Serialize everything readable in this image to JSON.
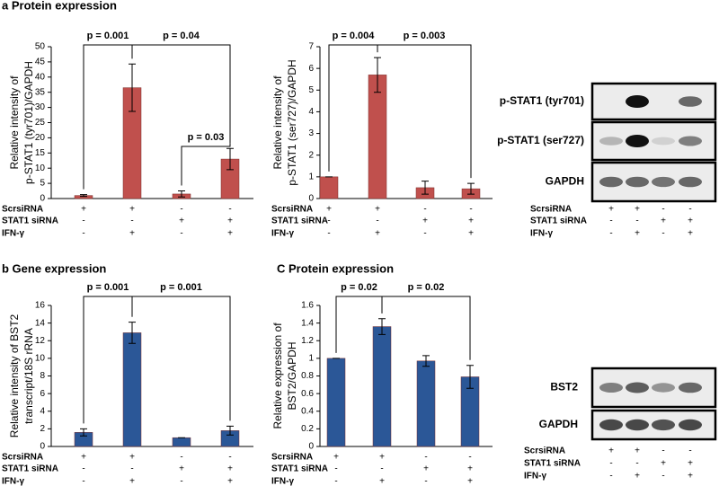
{
  "chart_data": [
    {
      "type": "bar",
      "title": "a Protein expression",
      "ylabel": [
        "Relative intensity of",
        "p-STAT1 (tyr701)/GAPDH"
      ],
      "color": "#c0504d",
      "values": [
        1,
        36.5,
        1.5,
        13
      ],
      "errors": [
        0.3,
        7.8,
        1,
        3.5
      ],
      "ylim": [
        0,
        50
      ],
      "yticks": [
        0,
        5,
        10,
        15,
        20,
        25,
        30,
        35,
        40,
        45,
        50
      ],
      "annotations": [
        "p = 0.001",
        "p = 0.04",
        "p = 0.03"
      ],
      "conditions": [
        {
          "name": "ScrsiRNA",
          "signs": [
            "+",
            "+",
            "-",
            "-"
          ]
        },
        {
          "name": "STAT1 siRNA",
          "signs": [
            "-",
            "-",
            "+",
            "+"
          ]
        },
        {
          "name": "IFN-γ",
          "signs": [
            "-",
            "+",
            "-",
            "+"
          ]
        }
      ]
    },
    {
      "type": "bar",
      "ylabel": [
        "Relative intensity of",
        "p-STAT1 (ser727)/GAPDH"
      ],
      "color": "#c0504d",
      "values": [
        1,
        5.7,
        0.5,
        0.45
      ],
      "errors": [
        0,
        0.8,
        0.3,
        0.25
      ],
      "ylim": [
        0,
        7
      ],
      "yticks": [
        0,
        1,
        2,
        3,
        4,
        5,
        6,
        7
      ],
      "annotations": [
        "p = 0.004",
        "p = 0.003"
      ],
      "conditions": [
        {
          "name": "ScrsiRNA",
          "signs": [
            "+",
            "+",
            "-",
            "-"
          ]
        },
        {
          "name": "STAT1 siRNA",
          "signs": [
            "-",
            "-",
            "+",
            "+"
          ]
        },
        {
          "name": "IFN-γ",
          "signs": [
            "-",
            "+",
            "-",
            "+"
          ]
        }
      ]
    },
    {
      "type": "bar",
      "title": "b Gene expression",
      "ylabel": [
        "Relative intensity of BST2",
        "transcript/18S rRNA"
      ],
      "color": "#2b5797",
      "values": [
        1.6,
        12.9,
        1,
        1.8
      ],
      "errors": [
        0.4,
        1.2,
        0,
        0.5
      ],
      "ylim": [
        0,
        16
      ],
      "yticks": [
        0,
        2,
        4,
        6,
        8,
        10,
        12,
        14,
        16
      ],
      "annotations": [
        "p = 0.001",
        "p = 0.001"
      ],
      "conditions": [
        {
          "name": "ScrsiRNA",
          "signs": [
            "+",
            "+",
            "-",
            "-"
          ]
        },
        {
          "name": "STAT1 siRNA",
          "signs": [
            "-",
            "-",
            "+",
            "+"
          ]
        },
        {
          "name": "IFN-γ",
          "signs": [
            "-",
            "+",
            "-",
            "+"
          ]
        }
      ]
    },
    {
      "type": "bar",
      "title": "C Protein expression",
      "ylabel": [
        "Relative expression of",
        "BST2/GAPDH"
      ],
      "color": "#2b5797",
      "values": [
        1,
        1.36,
        0.97,
        0.79
      ],
      "errors": [
        0,
        0.09,
        0.06,
        0.13
      ],
      "ylim": [
        0,
        1.6
      ],
      "yticks": [
        0,
        0.2,
        0.4,
        0.6,
        0.8,
        1,
        1.2,
        1.4,
        1.6
      ],
      "annotations": [
        "p = 0.02",
        "p = 0.02"
      ],
      "conditions": [
        {
          "name": "ScrsiRNA",
          "signs": [
            "+",
            "+",
            "-",
            "-"
          ]
        },
        {
          "name": "STAT1 siRNA",
          "signs": [
            "-",
            "-",
            "+",
            "+"
          ]
        },
        {
          "name": "IFN-γ",
          "signs": [
            "-",
            "+",
            "-",
            "+"
          ]
        }
      ]
    }
  ],
  "blots": [
    {
      "bands": [
        "p-STAT1 (tyr701)",
        "p-STAT1 (ser727)",
        "GAPDH"
      ],
      "conditions": [
        {
          "name": "ScrsiRNA",
          "signs": [
            "+",
            "+",
            "-",
            "-"
          ]
        },
        {
          "name": "STAT1 siRNA",
          "signs": [
            "-",
            "-",
            "+",
            "+"
          ]
        },
        {
          "name": "IFN-γ",
          "signs": [
            "-",
            "+",
            "-",
            "+"
          ]
        }
      ]
    },
    {
      "bands": [
        "BST2",
        "GAPDH"
      ],
      "conditions": [
        {
          "name": "ScrsiRNA",
          "signs": [
            "+",
            "+",
            "-",
            "-"
          ]
        },
        {
          "name": "STAT1 siRNA",
          "signs": [
            "-",
            "-",
            "+",
            "+"
          ]
        },
        {
          "name": "IFN-γ",
          "signs": [
            "-",
            "+",
            "-",
            "+"
          ]
        }
      ]
    }
  ]
}
